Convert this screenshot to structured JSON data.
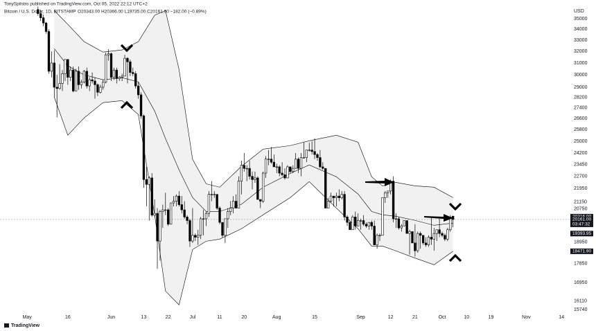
{
  "header": {
    "author_line": "TonySpilstro published on TradingView.com, Oct 05, 2022 22:12 UTC+2",
    "symbol": "Bitcoin / U.S. Dollar, 1D, BITSTAMP",
    "quote": "O20343.00 H20366.00 L19735.00 C20161.00 −182.00 (−0.89%)",
    "logo": "TradingView"
  },
  "chart_data": {
    "type": "candlestick",
    "currency": "USD",
    "log": true,
    "grid": false,
    "up_color": "#ffffff",
    "down_color": "#000000",
    "wick_color": "#000000",
    "band_color": "#000000",
    "band_fill": "#f1f1f1",
    "xlim": [
      "2022-04-21",
      "2022-11-17"
    ],
    "ylim": [
      15590,
      36300
    ],
    "xticks": [
      {
        "value": "2022-05-01",
        "label": "May"
      },
      {
        "value": "2022-05-16",
        "label": "16"
      },
      {
        "value": "2022-06-01",
        "label": "Jun"
      },
      {
        "value": "2022-06-13",
        "label": "13"
      },
      {
        "value": "2022-06-22",
        "label": "22"
      },
      {
        "value": "2022-07-01",
        "label": "Jul"
      },
      {
        "value": "2022-07-11",
        "label": "11"
      },
      {
        "value": "2022-07-20",
        "label": "20"
      },
      {
        "value": "2022-08-01",
        "label": "Aug"
      },
      {
        "value": "2022-08-15",
        "label": "15"
      },
      {
        "value": "2022-09-01",
        "label": "Sep"
      },
      {
        "value": "2022-09-12",
        "label": "12"
      },
      {
        "value": "2022-09-21",
        "label": "21"
      },
      {
        "value": "2022-10-01",
        "label": "Oct"
      },
      {
        "value": "2022-10-10",
        "label": "10"
      },
      {
        "value": "2022-10-19",
        "label": "19"
      },
      {
        "value": "2022-11-01",
        "label": "Nov"
      },
      {
        "value": "2022-11-14",
        "label": "14"
      }
    ],
    "yticks": [
      35000,
      34000,
      33000,
      32000,
      31000,
      30000,
      29000,
      28200,
      27400,
      26600,
      25800,
      25000,
      24200,
      23450,
      22700,
      21950,
      21150,
      20750,
      18950,
      17850,
      16950,
      16110,
      15740
    ],
    "price_labels": [
      {
        "value": 20316,
        "label": "20316.00"
      },
      {
        "value": 20161,
        "label": "20161.00"
      },
      {
        "value": 19393.95,
        "label": "19393.95"
      },
      {
        "value": 18471.9,
        "label": "18471.90"
      }
    ],
    "countdown": "03:47:32",
    "x": [
      "2022-05-05",
      "2022-05-06",
      "2022-05-07",
      "2022-05-08",
      "2022-05-09",
      "2022-05-10",
      "2022-05-11",
      "2022-05-12",
      "2022-05-13",
      "2022-05-14",
      "2022-05-15",
      "2022-05-16",
      "2022-05-17",
      "2022-05-18",
      "2022-05-19",
      "2022-05-20",
      "2022-05-21",
      "2022-05-22",
      "2022-05-23",
      "2022-05-24",
      "2022-05-25",
      "2022-05-26",
      "2022-05-27",
      "2022-05-28",
      "2022-05-29",
      "2022-05-30",
      "2022-05-31",
      "2022-06-01",
      "2022-06-02",
      "2022-06-03",
      "2022-06-04",
      "2022-06-05",
      "2022-06-06",
      "2022-06-07",
      "2022-06-08",
      "2022-06-09",
      "2022-06-10",
      "2022-06-11",
      "2022-06-12",
      "2022-06-13",
      "2022-06-14",
      "2022-06-15",
      "2022-06-16",
      "2022-06-17",
      "2022-06-18",
      "2022-06-19",
      "2022-06-20",
      "2022-06-21",
      "2022-06-22",
      "2022-06-23",
      "2022-06-24",
      "2022-06-25",
      "2022-06-26",
      "2022-06-27",
      "2022-06-28",
      "2022-06-29",
      "2022-06-30",
      "2022-07-01",
      "2022-07-02",
      "2022-07-03",
      "2022-07-04",
      "2022-07-05",
      "2022-07-06",
      "2022-07-07",
      "2022-07-08",
      "2022-07-09",
      "2022-07-10",
      "2022-07-11",
      "2022-07-12",
      "2022-07-13",
      "2022-07-14",
      "2022-07-15",
      "2022-07-16",
      "2022-07-17",
      "2022-07-18",
      "2022-07-19",
      "2022-07-20",
      "2022-07-21",
      "2022-07-22",
      "2022-07-23",
      "2022-07-24",
      "2022-07-25",
      "2022-07-26",
      "2022-07-27",
      "2022-07-28",
      "2022-07-29",
      "2022-07-30",
      "2022-07-31",
      "2022-08-01",
      "2022-08-02",
      "2022-08-03",
      "2022-08-04",
      "2022-08-05",
      "2022-08-06",
      "2022-08-07",
      "2022-08-08",
      "2022-08-09",
      "2022-08-10",
      "2022-08-11",
      "2022-08-12",
      "2022-08-13",
      "2022-08-14",
      "2022-08-15",
      "2022-08-16",
      "2022-08-17",
      "2022-08-18",
      "2022-08-19",
      "2022-08-20",
      "2022-08-21",
      "2022-08-22",
      "2022-08-23",
      "2022-08-24",
      "2022-08-25",
      "2022-08-26",
      "2022-08-27",
      "2022-08-28",
      "2022-08-29",
      "2022-08-30",
      "2022-08-31",
      "2022-09-01",
      "2022-09-02",
      "2022-09-03",
      "2022-09-04",
      "2022-09-05",
      "2022-09-06",
      "2022-09-07",
      "2022-09-08",
      "2022-09-09",
      "2022-09-10",
      "2022-09-11",
      "2022-09-12",
      "2022-09-13",
      "2022-09-14",
      "2022-09-15",
      "2022-09-16",
      "2022-09-17",
      "2022-09-18",
      "2022-09-19",
      "2022-09-20",
      "2022-09-21",
      "2022-09-22",
      "2022-09-23",
      "2022-09-24",
      "2022-09-25",
      "2022-09-26",
      "2022-09-27",
      "2022-09-28",
      "2022-09-29",
      "2022-09-30",
      "2022-10-01",
      "2022-10-02",
      "2022-10-03",
      "2022-10-04",
      "2022-10-05"
    ],
    "ohlc": [
      [
        35900,
        36200,
        35300,
        35500
      ],
      [
        35500,
        35900,
        34800,
        35100
      ],
      [
        35100,
        35400,
        34300,
        34600
      ],
      [
        34600,
        34700,
        33600,
        33800
      ],
      [
        33800,
        34000,
        30100,
        30300
      ],
      [
        30300,
        32000,
        29800,
        31000
      ],
      [
        31000,
        32100,
        28200,
        29000
      ],
      [
        29000,
        30000,
        26700,
        28900
      ],
      [
        28900,
        30900,
        28800,
        29300
      ],
      [
        29300,
        30400,
        28700,
        30100
      ],
      [
        30100,
        31300,
        29500,
        31300
      ],
      [
        31300,
        31300,
        29200,
        29800
      ],
      [
        29800,
        30700,
        29500,
        30400
      ],
      [
        30400,
        30700,
        28600,
        28700
      ],
      [
        28700,
        30500,
        28700,
        30300
      ],
      [
        30300,
        30700,
        28800,
        29200
      ],
      [
        29200,
        29600,
        28900,
        29400
      ],
      [
        29400,
        30400,
        29300,
        30300
      ],
      [
        30300,
        30600,
        28900,
        29100
      ],
      [
        29100,
        29800,
        28700,
        29600
      ],
      [
        29600,
        30200,
        29300,
        29500
      ],
      [
        29500,
        29800,
        28100,
        29200
      ],
      [
        29200,
        29300,
        28300,
        28600
      ],
      [
        28600,
        29200,
        28500,
        29000
      ],
      [
        29000,
        29600,
        28800,
        29400
      ],
      [
        29400,
        31900,
        29300,
        31700
      ],
      [
        31700,
        32200,
        31200,
        31800
      ],
      [
        31800,
        31900,
        29500,
        29800
      ],
      [
        29800,
        30600,
        29600,
        30400
      ],
      [
        30400,
        30600,
        29300,
        29700
      ],
      [
        29700,
        29900,
        29500,
        29800
      ],
      [
        29800,
        30100,
        29500,
        29900
      ],
      [
        29900,
        31700,
        29900,
        31400
      ],
      [
        31400,
        31500,
        29300,
        31100
      ],
      [
        31100,
        31300,
        29900,
        30200
      ],
      [
        30200,
        30600,
        29900,
        30100
      ],
      [
        30100,
        30300,
        28900,
        29100
      ],
      [
        29100,
        29400,
        28100,
        28400
      ],
      [
        28400,
        28600,
        26600,
        26800
      ],
      [
        26800,
        26900,
        22000,
        22500
      ],
      [
        22500,
        23300,
        20900,
        22200
      ],
      [
        22200,
        22700,
        20100,
        22600
      ],
      [
        22600,
        22900,
        20300,
        20400
      ],
      [
        20400,
        21300,
        20300,
        20500
      ],
      [
        20500,
        20800,
        17600,
        19000
      ],
      [
        19000,
        20700,
        18000,
        20600
      ],
      [
        20600,
        21000,
        19700,
        20700
      ],
      [
        20700,
        21700,
        20400,
        20700
      ],
      [
        20700,
        20800,
        19800,
        19900
      ],
      [
        19900,
        21100,
        19900,
        21100
      ],
      [
        21100,
        21500,
        20900,
        21200
      ],
      [
        21200,
        21600,
        20900,
        21500
      ],
      [
        21500,
        21800,
        20900,
        21000
      ],
      [
        21000,
        21500,
        20500,
        20700
      ],
      [
        20700,
        21200,
        20200,
        20300
      ],
      [
        20300,
        20400,
        19900,
        20100
      ],
      [
        20100,
        20200,
        18700,
        19000
      ],
      [
        19000,
        20800,
        18900,
        19300
      ],
      [
        19300,
        19400,
        19000,
        19200
      ],
      [
        19200,
        19600,
        18800,
        19300
      ],
      [
        19300,
        20300,
        19100,
        20200
      ],
      [
        20200,
        20700,
        19300,
        20200
      ],
      [
        20200,
        20600,
        19800,
        20500
      ],
      [
        20500,
        21800,
        20300,
        21600
      ],
      [
        21600,
        22400,
        21200,
        21600
      ],
      [
        21600,
        21800,
        21400,
        21600
      ],
      [
        21600,
        21600,
        20700,
        20800
      ],
      [
        20800,
        20900,
        19900,
        20000
      ],
      [
        20000,
        20000,
        19200,
        19300
      ],
      [
        19300,
        20200,
        18900,
        20200
      ],
      [
        20200,
        20800,
        19700,
        20600
      ],
      [
        20600,
        21200,
        20400,
        20800
      ],
      [
        20800,
        21500,
        20500,
        21200
      ],
      [
        21200,
        21600,
        20800,
        20800
      ],
      [
        20800,
        22700,
        20800,
        22400
      ],
      [
        22400,
        23700,
        21600,
        23400
      ],
      [
        23400,
        24200,
        23000,
        23200
      ],
      [
        23200,
        23400,
        22400,
        23200
      ],
      [
        23200,
        23700,
        22500,
        22700
      ],
      [
        22700,
        23000,
        21900,
        22500
      ],
      [
        22500,
        23000,
        22300,
        22600
      ],
      [
        22600,
        22700,
        21300,
        21300
      ],
      [
        21300,
        21300,
        20800,
        21200
      ],
      [
        21200,
        23000,
        21100,
        22900
      ],
      [
        22900,
        24000,
        22600,
        23800
      ],
      [
        23800,
        24400,
        23400,
        23800
      ],
      [
        23800,
        24600,
        23500,
        23600
      ],
      [
        23600,
        24100,
        23300,
        23300
      ],
      [
        23300,
        23500,
        22900,
        23300
      ],
      [
        23300,
        23400,
        22700,
        22900
      ],
      [
        22900,
        23600,
        22700,
        22800
      ],
      [
        22800,
        23200,
        22500,
        22600
      ],
      [
        22600,
        23400,
        22600,
        23300
      ],
      [
        23300,
        23300,
        22900,
        23000
      ],
      [
        23000,
        23400,
        22900,
        23200
      ],
      [
        23200,
        24200,
        23200,
        23800
      ],
      [
        23800,
        23900,
        22900,
        23200
      ],
      [
        23200,
        24200,
        22700,
        23900
      ],
      [
        23900,
        24900,
        23900,
        23900
      ],
      [
        23900,
        24400,
        23600,
        24400
      ],
      [
        24400,
        24900,
        24300,
        24400
      ],
      [
        24400,
        25000,
        24100,
        24300
      ],
      [
        24300,
        25200,
        23800,
        24100
      ],
      [
        24100,
        24200,
        23700,
        23900
      ],
      [
        23900,
        24400,
        23200,
        23300
      ],
      [
        23300,
        23600,
        23100,
        23200
      ],
      [
        23200,
        23200,
        20800,
        20800
      ],
      [
        20800,
        21400,
        20800,
        21200
      ],
      [
        21200,
        21700,
        21100,
        21500
      ],
      [
        21500,
        21500,
        20900,
        21400
      ],
      [
        21400,
        21700,
        20900,
        21500
      ],
      [
        21500,
        21900,
        21200,
        21400
      ],
      [
        21400,
        21800,
        21300,
        21600
      ],
      [
        21600,
        21800,
        20100,
        20300
      ],
      [
        20300,
        20400,
        19800,
        20000
      ],
      [
        20000,
        20100,
        19600,
        19600
      ],
      [
        19600,
        20400,
        19600,
        20300
      ],
      [
        20300,
        20600,
        19600,
        19800
      ],
      [
        19800,
        20500,
        19800,
        20100
      ],
      [
        20100,
        20200,
        19600,
        20100
      ],
      [
        20100,
        20400,
        19800,
        19900
      ],
      [
        19900,
        20000,
        19700,
        19800
      ],
      [
        19800,
        20000,
        19600,
        20000
      ],
      [
        20000,
        20100,
        19600,
        19800
      ],
      [
        19800,
        20100,
        18800,
        18800
      ],
      [
        18800,
        19400,
        18600,
        19300
      ],
      [
        19300,
        19400,
        19000,
        19300
      ],
      [
        19300,
        21400,
        19300,
        21400
      ],
      [
        21400,
        21800,
        21100,
        21700
      ],
      [
        21700,
        21800,
        21400,
        21800
      ],
      [
        21800,
        22500,
        21600,
        22400
      ],
      [
        22400,
        22700,
        20000,
        20200
      ],
      [
        20200,
        20500,
        19700,
        20200
      ],
      [
        20200,
        20300,
        19600,
        19700
      ],
      [
        19700,
        19900,
        19500,
        19800
      ],
      [
        19800,
        20100,
        19800,
        20100
      ],
      [
        20100,
        20100,
        19400,
        19400
      ],
      [
        19400,
        19600,
        18300,
        19500
      ],
      [
        19500,
        19500,
        18900,
        18900
      ],
      [
        18900,
        19900,
        18200,
        18500
      ],
      [
        18500,
        19500,
        18400,
        19400
      ],
      [
        19400,
        19500,
        18600,
        19300
      ],
      [
        19300,
        19300,
        18800,
        18900
      ],
      [
        18900,
        19200,
        18700,
        18800
      ],
      [
        18800,
        19300,
        18700,
        19200
      ],
      [
        19200,
        20300,
        18800,
        19100
      ],
      [
        19100,
        19700,
        18500,
        19400
      ],
      [
        19400,
        19600,
        19000,
        19600
      ],
      [
        19600,
        20200,
        19200,
        19400
      ],
      [
        19400,
        19500,
        19200,
        19300
      ],
      [
        19300,
        19400,
        19000,
        19100
      ],
      [
        19100,
        19700,
        19000,
        19600
      ],
      [
        19600,
        20400,
        19500,
        20300
      ],
      [
        20343,
        20366,
        19735,
        20161
      ]
    ],
    "band_x": [
      "2022-05-11",
      "2022-05-16",
      "2022-05-22",
      "2022-05-29",
      "2022-06-05",
      "2022-06-11",
      "2022-06-17",
      "2022-06-21",
      "2022-06-26",
      "2022-07-01",
      "2022-07-06",
      "2022-07-11",
      "2022-07-19",
      "2022-07-27",
      "2022-08-06",
      "2022-08-13",
      "2022-08-23",
      "2022-08-31",
      "2022-09-05",
      "2022-09-09",
      "2022-09-14",
      "2022-09-21",
      "2022-09-28",
      "2022-10-05"
    ],
    "band_upper": [
      35810,
      34470,
      32870,
      31940,
      32130,
      32870,
      35340,
      35810,
      30450,
      23780,
      22240,
      22030,
      23330,
      24460,
      24700,
      25030,
      25410,
      24930,
      22670,
      22110,
      22320,
      22110,
      22030,
      21410
    ],
    "band_middle": [
      32250,
      30750,
      30000,
      29600,
      29770,
      29430,
      27170,
      25180,
      23110,
      21410,
      20610,
      20610,
      21020,
      22030,
      22880,
      23420,
      22670,
      21620,
      20610,
      20420,
      20340,
      20110,
      19840,
      19960
    ],
    "band_lower": [
      28220,
      25410,
      26650,
      27800,
      27950,
      26900,
      20420,
      16560,
      15940,
      18560,
      18990,
      19100,
      19650,
      20420,
      21410,
      22370,
      20800,
      19650,
      18740,
      18740,
      18490,
      18130,
      17800,
      18472
    ]
  }
}
